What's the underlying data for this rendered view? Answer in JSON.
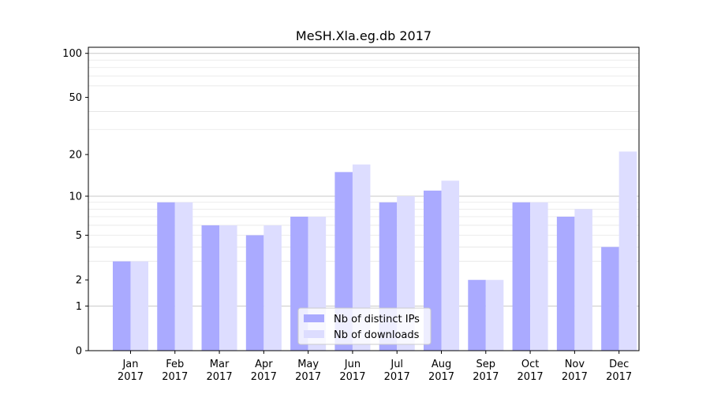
{
  "chart_data": {
    "type": "bar",
    "title": "MeSH.Xla.eg.db 2017",
    "xlabel": "",
    "ylabel": "",
    "y_scale": "log1p",
    "ylim": [
      0,
      110
    ],
    "y_ticks": [
      0,
      1,
      2,
      5,
      10,
      20,
      50,
      100
    ],
    "categories": [
      [
        "Jan",
        "2017"
      ],
      [
        "Feb",
        "2017"
      ],
      [
        "Mar",
        "2017"
      ],
      [
        "Apr",
        "2017"
      ],
      [
        "May",
        "2017"
      ],
      [
        "Jun",
        "2017"
      ],
      [
        "Jul",
        "2017"
      ],
      [
        "Aug",
        "2017"
      ],
      [
        "Sep",
        "2017"
      ],
      [
        "Oct",
        "2017"
      ],
      [
        "Nov",
        "2017"
      ],
      [
        "Dec",
        "2017"
      ]
    ],
    "series": [
      {
        "name": "Nb of distinct IPs",
        "color": "#aaaaff",
        "values": [
          3,
          9,
          6,
          5,
          7,
          15,
          9,
          11,
          2,
          9,
          7,
          4
        ]
      },
      {
        "name": "Nb of downloads",
        "color": "#ddddff",
        "values": [
          3,
          9,
          6,
          6,
          7,
          17,
          10,
          13,
          2,
          9,
          8,
          21
        ]
      }
    ],
    "grid": true,
    "legend_position": "bottom-center"
  }
}
